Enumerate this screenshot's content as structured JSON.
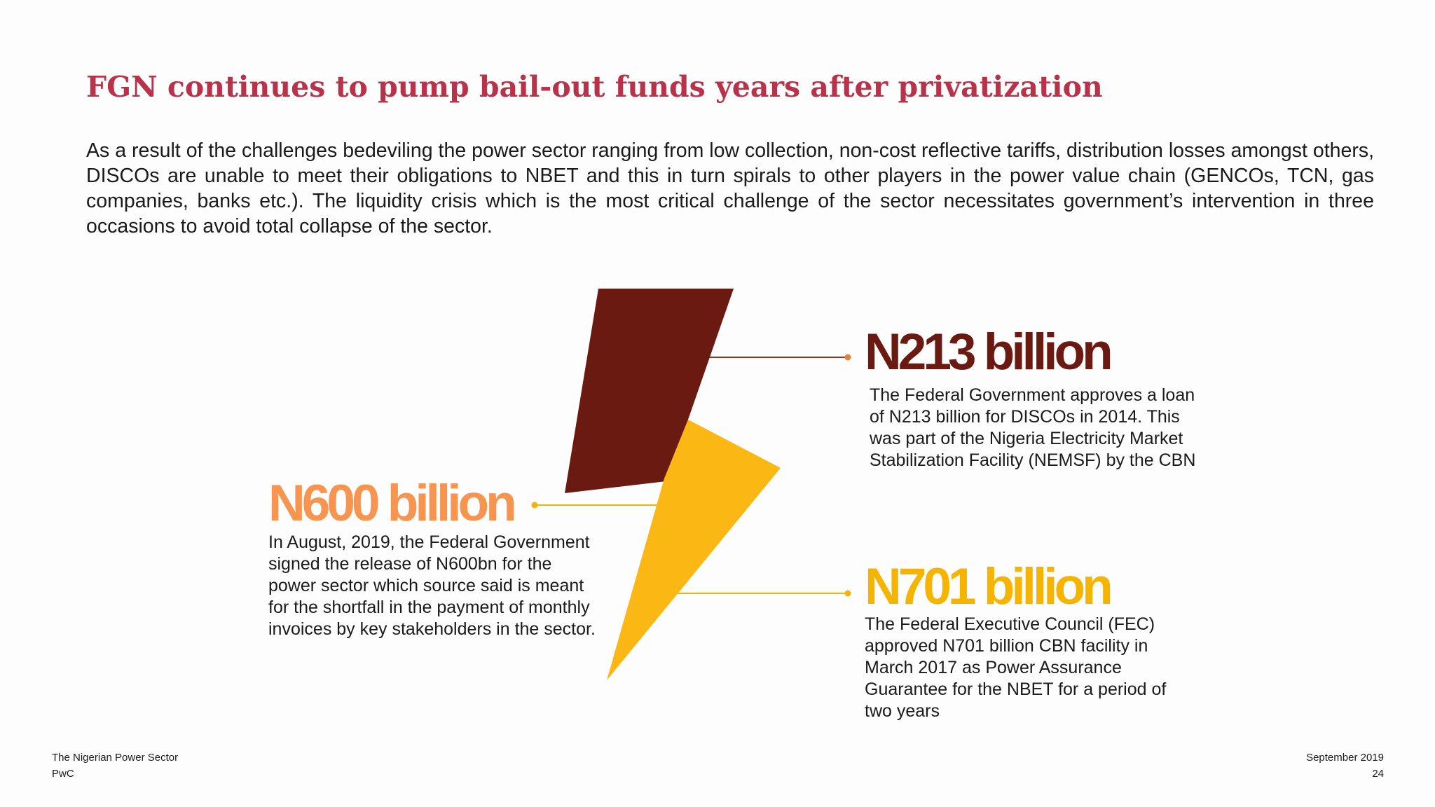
{
  "slide": {
    "title": "FGN continues to pump bail-out funds years after privatization",
    "intro": "As a result of the challenges bedeviling the power sector ranging from low collection, non-cost reflective tariffs, distribution losses amongst others, DISCOs are unable to meet their obligations to NBET and this in turn spirals to other players in the power value chain (GENCOs, TCN, gas companies, banks etc.). The liquidity crisis which is the most critical challenge of the sector necessitates government’s intervention in three occasions to avoid total collapse of the sector."
  },
  "callouts": {
    "n213": {
      "amount": "N213 billion",
      "description": "The Federal Government approves a loan of N213 billion for DISCOs in 2014. This was part of the Nigeria Electricity Market Stabilization Facility (NEMSF) by the CBN",
      "color": "#6b1a12"
    },
    "n600": {
      "amount": "N600 billion",
      "description": "In August, 2019, the Federal Government signed the release of N600bn for the power sector which source said is meant for the shortfall in the payment of monthly invoices  by key stakeholders in the sector.",
      "color": "#f7944f"
    },
    "n701": {
      "amount": "N701 billion",
      "description": "The Federal Executive Council (FEC) approved N701 billion CBN facility in March 2017 as Power Assurance Guarantee for the NBET for a period of two years",
      "color": "#f5b400"
    }
  },
  "footer": {
    "left_line1": "The Nigerian Power Sector",
    "left_line2": "PwC",
    "right_line1": "September 2019",
    "right_line2": "24"
  },
  "colors": {
    "title": "#b8334a",
    "bolt_top": "#6b1a12",
    "bolt_bottom": "#fbb713",
    "connector_213": "#8c3b22",
    "connector_600": "#f5b400",
    "connector_701": "#f5b400"
  },
  "icons": {
    "bolt": "lightning-bolt-icon"
  }
}
